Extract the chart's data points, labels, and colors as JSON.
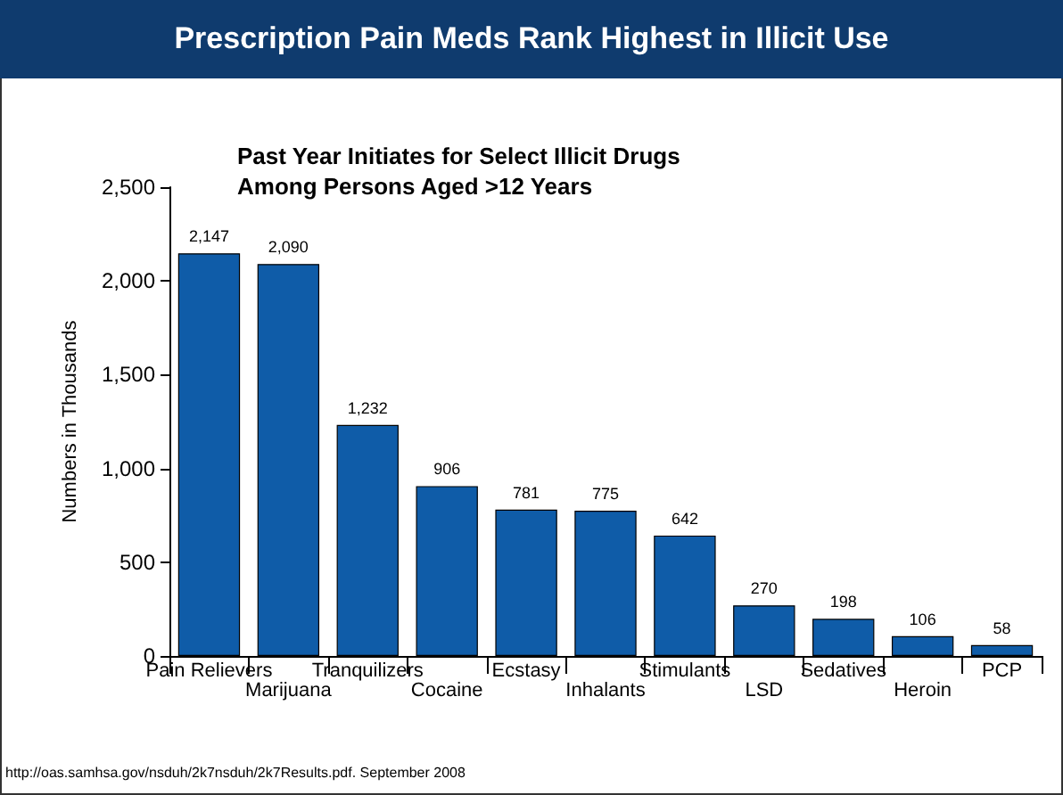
{
  "chart_data": {
    "type": "bar",
    "title": "Prescription Pain Meds Rank Highest in Illicit Use",
    "subtitle": "Past Year Initiates for Select Illicit Drugs\nAmong Persons Aged >12 Years",
    "ylabel": "Numbers in Thousands",
    "categories": [
      "Pain Relievers",
      "Marijuana",
      "Tranquilizers",
      "Cocaine",
      "Ecstasy",
      "Inhalants",
      "Stimulants",
      "LSD",
      "Sedatives",
      "Heroin",
      "PCP"
    ],
    "values": [
      2147,
      2090,
      1232,
      906,
      781,
      775,
      642,
      270,
      198,
      106,
      58
    ],
    "value_labels": [
      "2,147",
      "2,090",
      "1,232",
      "906",
      "781",
      "775",
      "642",
      "270",
      "198",
      "106",
      "58"
    ],
    "color": "#0f5ca8",
    "ylim": [
      0,
      2500
    ],
    "yticks": [
      0,
      500,
      {
        "value": 1000,
        "label": "1,000"
      },
      {
        "value": 1500,
        "label": "1,500"
      },
      {
        "value": 2000,
        "label": "2,000"
      },
      {
        "value": 2500,
        "label": "2,500"
      }
    ],
    "annotations": [
      "http://oas.samhsa.gov/nsduh/2k7nsduh/2k7Results.pdf.  September 2008"
    ]
  }
}
